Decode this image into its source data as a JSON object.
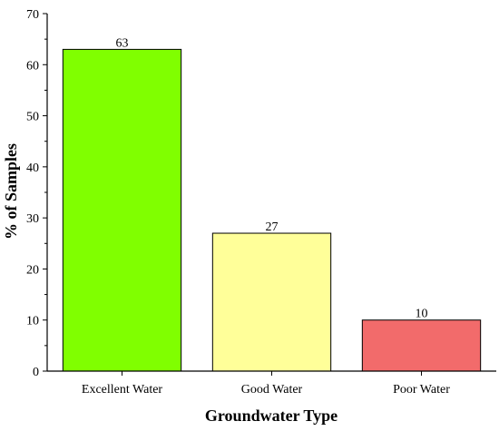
{
  "chart_data": {
    "type": "bar",
    "categories": [
      "Excellent Water",
      "Good Water",
      "Poor Water"
    ],
    "values": [
      63,
      27,
      10
    ],
    "data_labels": [
      "63",
      "27",
      "10"
    ],
    "colors": [
      "#80ff00",
      "#ffff99",
      "#f26b6b"
    ],
    "title": "",
    "xlabel": "Groundwater Type",
    "ylabel": "% of Samples",
    "ylim": [
      0,
      70
    ],
    "yticks": [
      0,
      10,
      20,
      30,
      40,
      50,
      60,
      70
    ],
    "grid": false,
    "legend": "none"
  }
}
